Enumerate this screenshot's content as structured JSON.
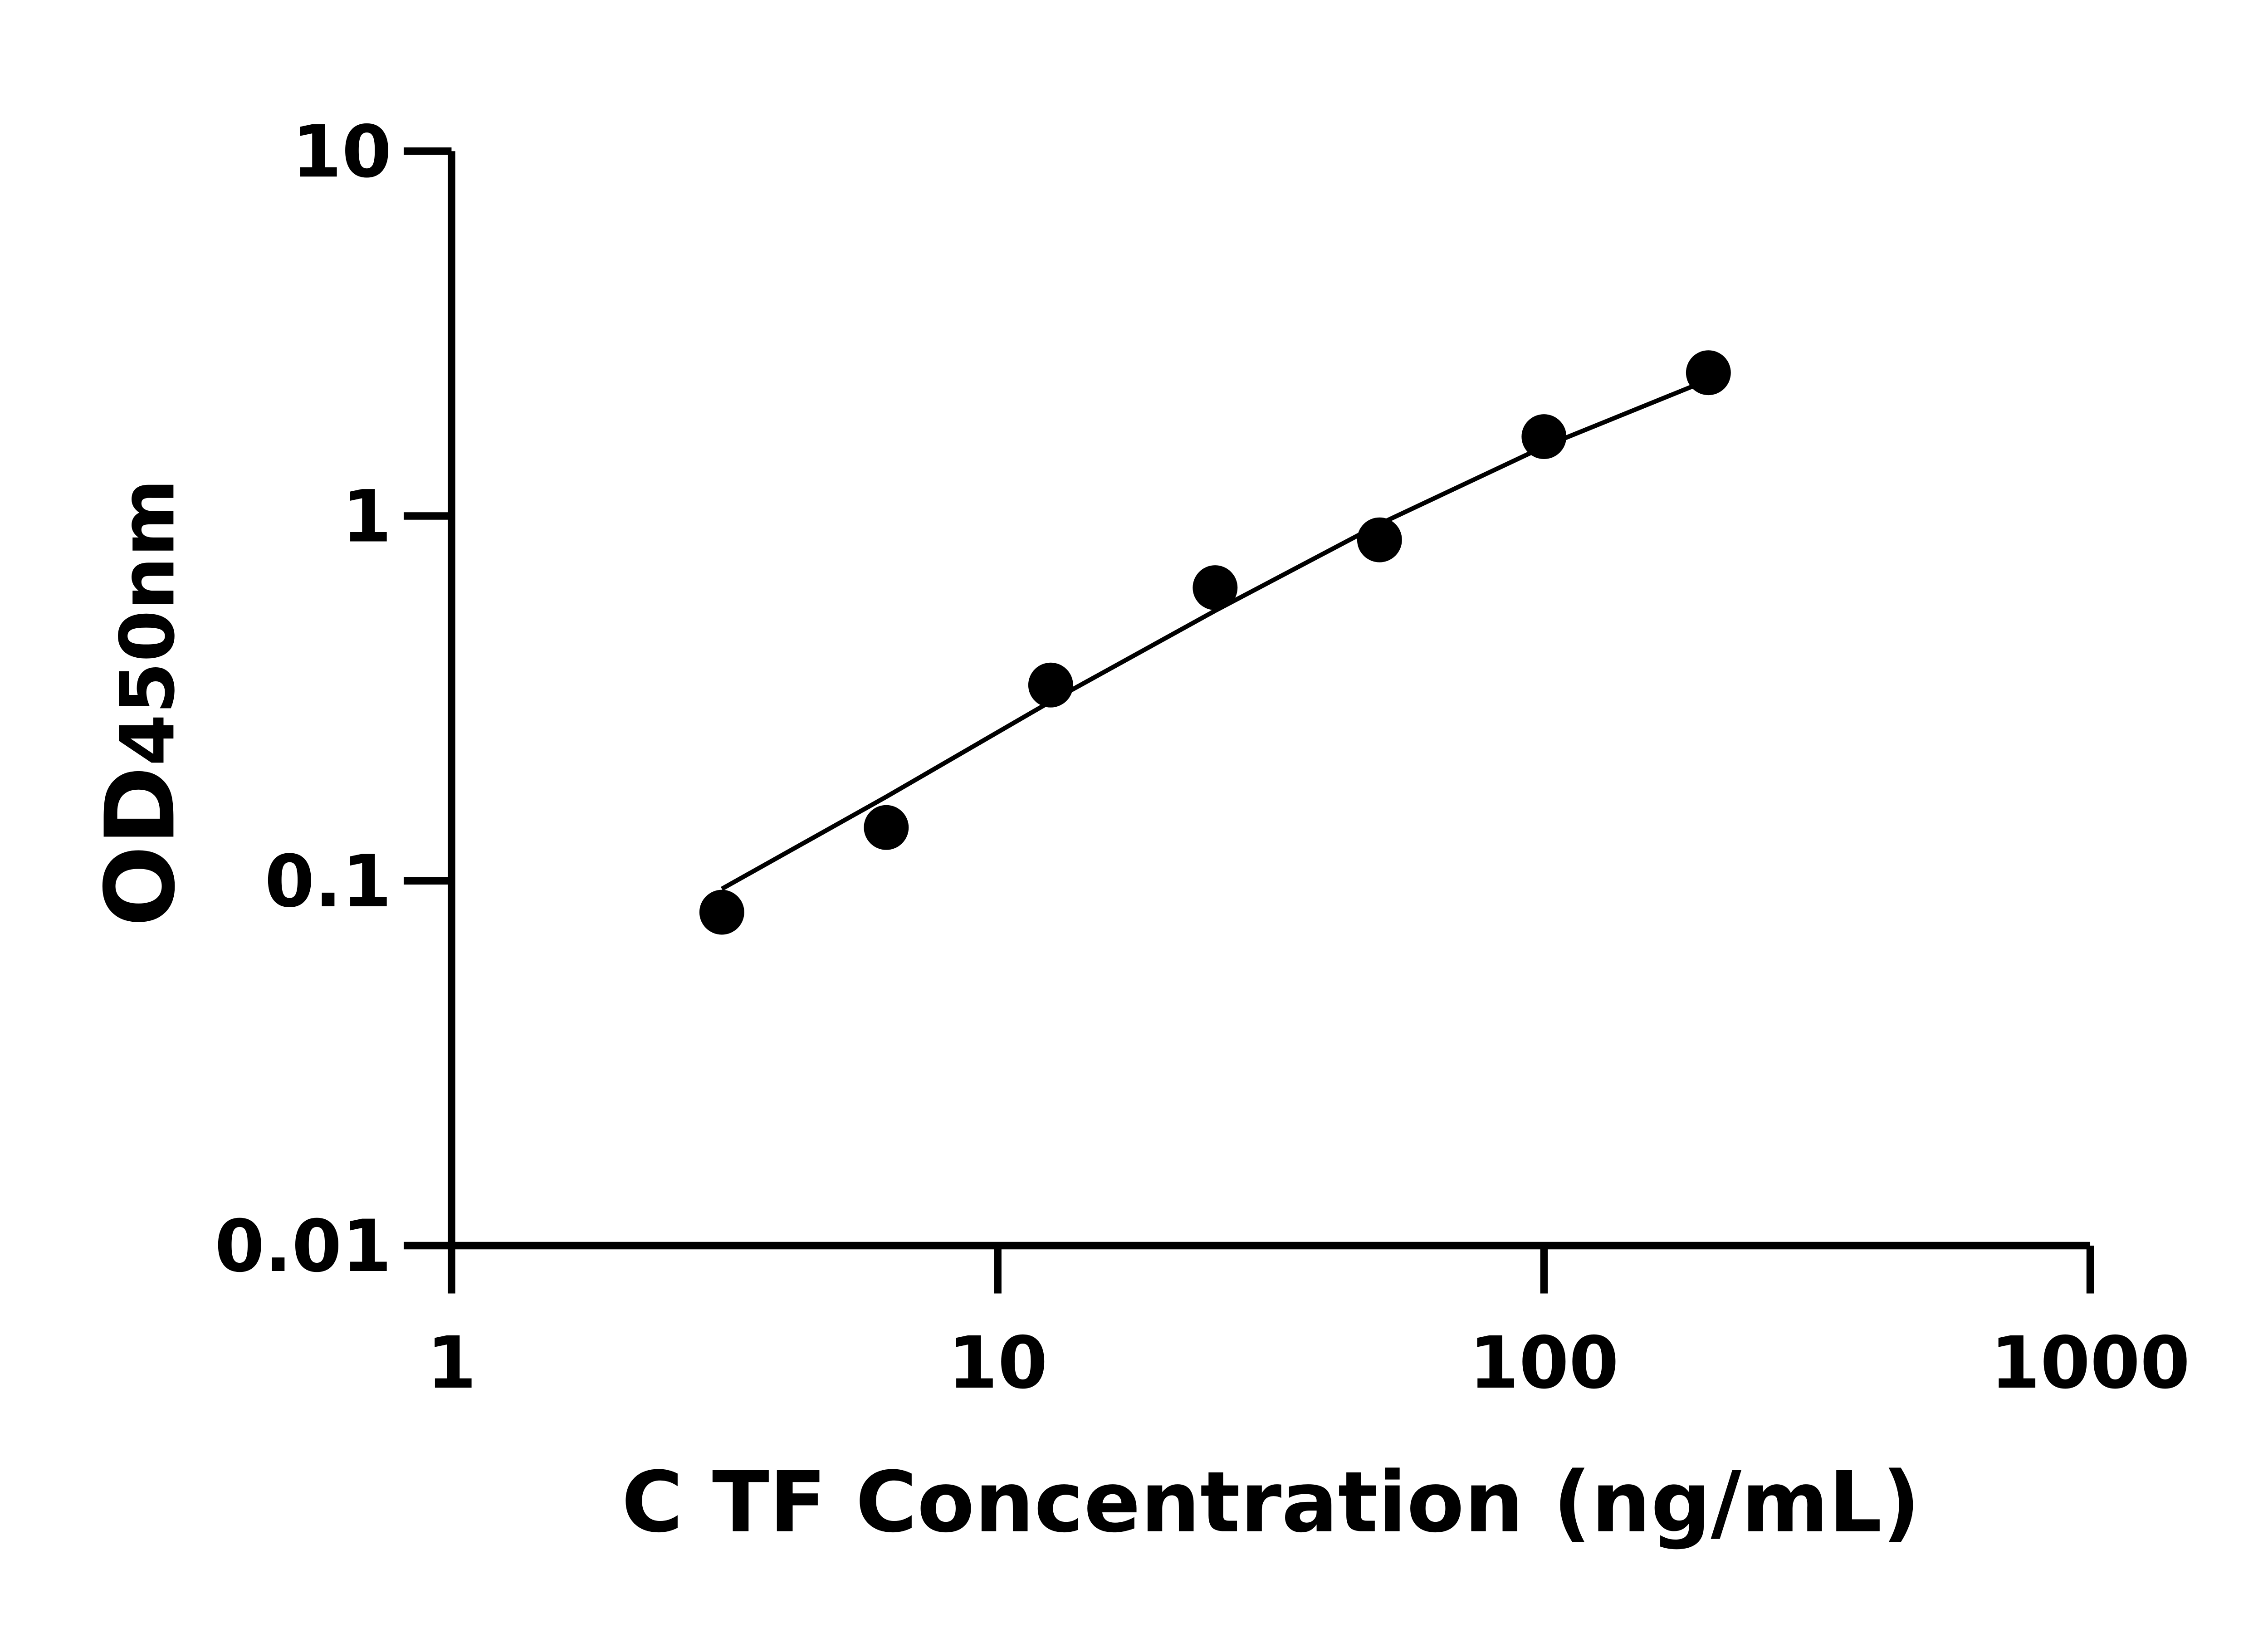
{
  "chart_data": {
    "type": "scatter",
    "title": "",
    "xlabel": "C TF Concentration (ng/mL)",
    "ylabel_main": "OD",
    "ylabel_sub": "450nm",
    "x_scale": "log",
    "y_scale": "log",
    "xlim": [
      1,
      1000
    ],
    "ylim": [
      0.01,
      10
    ],
    "x_ticks": [
      1,
      10,
      100,
      1000
    ],
    "x_tick_labels": [
      "1",
      "10",
      "100",
      "1000"
    ],
    "y_ticks": [
      0.01,
      0.1,
      1,
      10
    ],
    "y_tick_labels": [
      "0.01",
      "0.1",
      "1",
      "10"
    ],
    "grid": false,
    "legend": "none",
    "points": [
      {
        "x": 3.125,
        "y": 0.082
      },
      {
        "x": 6.25,
        "y": 0.14
      },
      {
        "x": 12.5,
        "y": 0.344
      },
      {
        "x": 25,
        "y": 0.636
      },
      {
        "x": 50,
        "y": 0.86
      },
      {
        "x": 100,
        "y": 1.65
      },
      {
        "x": 200,
        "y": 2.47
      }
    ],
    "fit_curve": [
      {
        "x": 3.125,
        "y": 0.095
      },
      {
        "x": 6.25,
        "y": 0.17
      },
      {
        "x": 12.5,
        "y": 0.31
      },
      {
        "x": 25,
        "y": 0.55
      },
      {
        "x": 50,
        "y": 0.95
      },
      {
        "x": 100,
        "y": 1.55
      },
      {
        "x": 200,
        "y": 2.36
      }
    ],
    "colors": {
      "marker": "#000000",
      "line": "#000000",
      "axis": "#000000"
    }
  }
}
